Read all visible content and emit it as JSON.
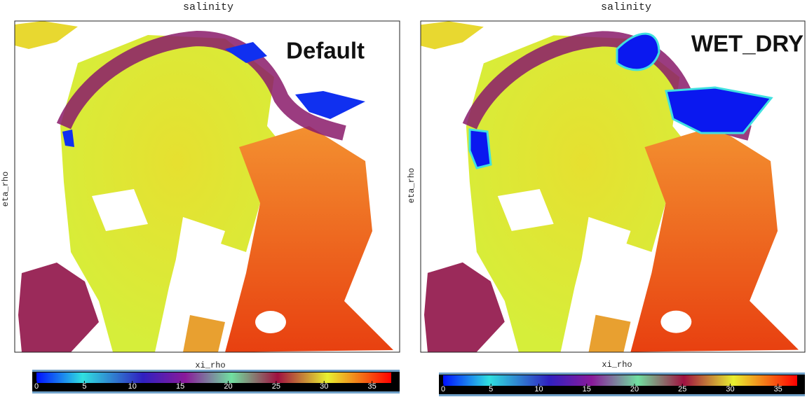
{
  "panels": [
    {
      "title": "salinity",
      "xlabel": "xi_rho",
      "ylabel": "eta_rho",
      "annotation": "Default",
      "colorbar": {
        "range": [
          0,
          37
        ],
        "ticks": [
          0,
          5,
          10,
          15,
          20,
          25,
          30,
          35
        ]
      }
    },
    {
      "title": "salinity",
      "xlabel": "xi_rho",
      "ylabel": "eta_rho",
      "annotation": "WET_DRY",
      "colorbar": {
        "range": [
          0,
          37
        ],
        "ticks": [
          0,
          5,
          10,
          15,
          20,
          25,
          30,
          35
        ]
      }
    }
  ]
}
